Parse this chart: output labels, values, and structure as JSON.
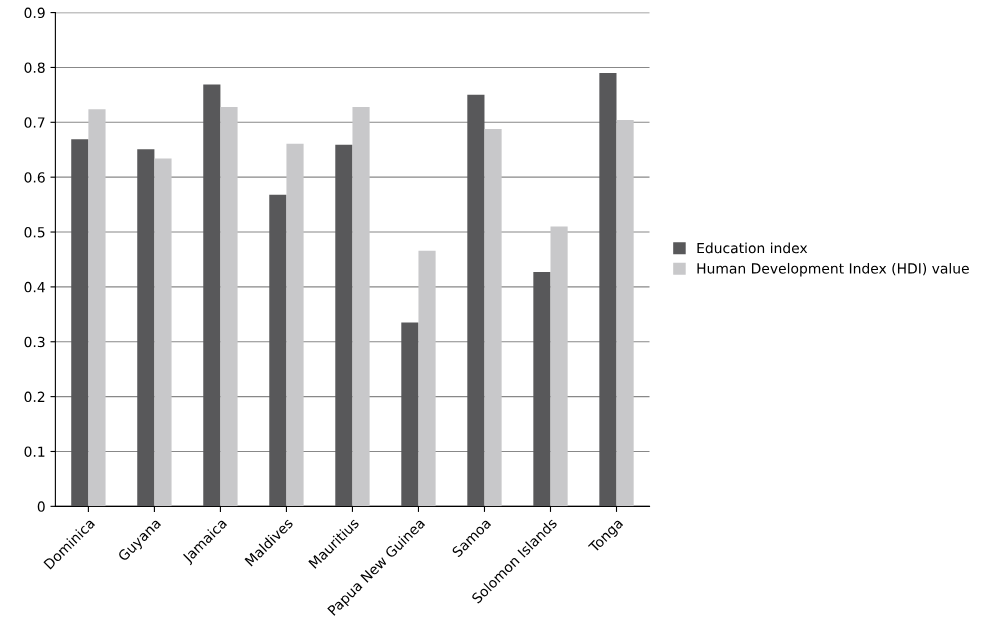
{
  "chart_data": {
    "type": "bar",
    "categories": [
      "Dominica",
      "Guyana",
      "Jamaica",
      "Maldives",
      "Mauritius",
      "Papua New Guinea",
      "Samoa",
      "Solomon Islands",
      "Tonga"
    ],
    "series": [
      {
        "name": "Education index",
        "color": "#58585a",
        "values": [
          0.669,
          0.651,
          0.769,
          0.568,
          0.659,
          0.335,
          0.75,
          0.427,
          0.79
        ]
      },
      {
        "name": "Human Development Index (HDI) value",
        "color": "#c8c8ca",
        "values": [
          0.724,
          0.634,
          0.728,
          0.661,
          0.728,
          0.466,
          0.688,
          0.51,
          0.704
        ]
      }
    ],
    "ylim": [
      0,
      0.9
    ],
    "yticks": [
      0,
      0.1,
      0.2,
      0.3,
      0.4,
      0.5,
      0.6,
      0.7,
      0.8,
      0.9
    ],
    "grid": "y",
    "legend": "right"
  }
}
